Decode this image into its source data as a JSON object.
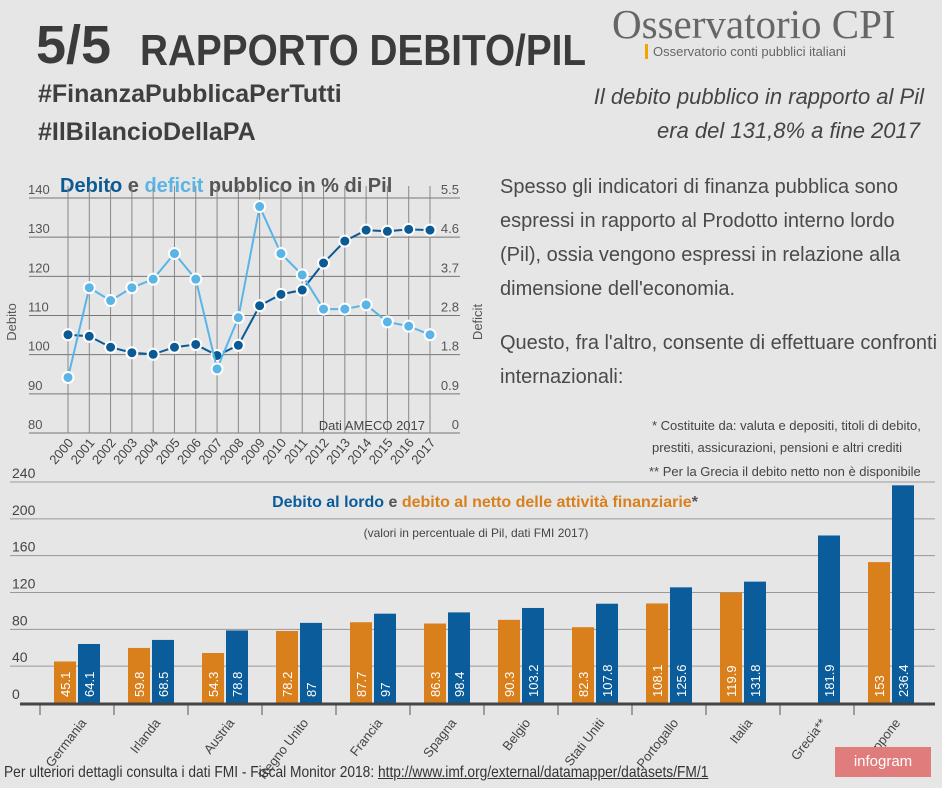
{
  "header": {
    "number": "5/5",
    "title": "RAPPORTO DEBITO/PIL",
    "hashtag1": "#FinanzaPubblicaPerTutti",
    "hashtag2": "#IlBilancioDellaPA"
  },
  "logo": {
    "name": "Osservatorio CPI",
    "tagline": "Osservatorio conti pubblici italiani"
  },
  "headline": {
    "line1": "Il debito pubblico in rapporto al Pil",
    "line2": "era del 131,8% a fine 2017"
  },
  "body": {
    "p1": "Spesso gli indicatori di finanza pubblica sono espressi in rapporto al Prodotto interno lordo (Pil), ossia vengono espressi in relazione alla dimensione dell'economia.",
    "p2": "Questo, fra l'altro, consente di effettuare confronti internazionali:"
  },
  "notes": {
    "n1a": "* Costituite da:  valuta e depositi, titoli di debito,",
    "n1b": "prestiti, assicurazioni, pensioni e altri crediti",
    "n2": "** Per la Grecia il debito netto non è disponibile"
  },
  "footer": {
    "text": "Per ulteriori dettagli consulta i dati FMI - Fiscal Monitor 2018: ",
    "link": "http://www.imf.org/external/datamapper/datasets/FM/1",
    "badge": "infogram"
  },
  "colors": {
    "debito": "#0b5a94",
    "deficit": "#5ab4e5",
    "lordo": "#0a5c9a",
    "netto": "#d9801c"
  },
  "chart_data": [
    {
      "type": "line",
      "title_parts": [
        "Debito",
        " e ",
        "deficit",
        " pubblico in % di Pil"
      ],
      "source": "Dati AMECO 2017",
      "x": [
        "2000",
        "2001",
        "2002",
        "2003",
        "2004",
        "2005",
        "2006",
        "2007",
        "2008",
        "2009",
        "2010",
        "2011",
        "2012",
        "2013",
        "2014",
        "2015",
        "2016",
        "2017"
      ],
      "ylabel": "Debito",
      "y2label": "Deficit",
      "ylim": [
        80,
        140
      ],
      "yticks": [
        "80",
        "90",
        "100",
        "110",
        "120",
        "130",
        "140"
      ],
      "y2lim": [
        0,
        5.5
      ],
      "y2ticks": [
        "0",
        "0.9",
        "1.8",
        "2.8",
        "3.7",
        "4.6",
        "5.5"
      ],
      "grid": true,
      "series": [
        {
          "name": "Debito",
          "axis": "left",
          "values": [
            105.1,
            104.7,
            101.9,
            100.5,
            100.1,
            101.9,
            102.6,
            99.8,
            102.4,
            112.5,
            115.4,
            116.5,
            123.4,
            129.0,
            131.8,
            131.5,
            132.0,
            131.8
          ]
        },
        {
          "name": "deficit",
          "axis": "right",
          "values": [
            1.3,
            3.4,
            3.1,
            3.4,
            3.6,
            4.2,
            3.6,
            1.5,
            2.7,
            5.3,
            4.2,
            3.7,
            2.9,
            2.9,
            3.0,
            2.6,
            2.5,
            2.3
          ]
        }
      ]
    },
    {
      "type": "bar",
      "title_parts": [
        "Debito al lordo",
        " e ",
        "debito al netto delle attività finanziarie",
        "*"
      ],
      "subtitle": "(valori in percentuale di Pil, dati FMI 2017)",
      "categories": [
        "Germania",
        "Irlanda",
        "Austria",
        "Regno Unito",
        "Francia",
        "Spagna",
        "Belgio",
        "Stati Uniti",
        "Portogallo",
        "Italia",
        "Grecia**",
        "Giappone"
      ],
      "ylim": [
        0,
        240
      ],
      "yticks": [
        "0",
        "40",
        "80",
        "120",
        "160",
        "200",
        "240"
      ],
      "grid": true,
      "series": [
        {
          "name": "debito al netto delle attività finanziarie",
          "labels": [
            "45.1",
            "59.8",
            "54.3",
            "78.2",
            "87.7",
            "86.3",
            "90.3",
            "82.3",
            "108.1",
            "119.9",
            null,
            "153"
          ],
          "values": [
            45.1,
            59.8,
            54.3,
            78.2,
            87.7,
            86.3,
            90.3,
            82.3,
            108.1,
            119.9,
            null,
            153
          ]
        },
        {
          "name": "Debito al lordo",
          "labels": [
            "64.1",
            "68.5",
            "78.8",
            "87",
            "97",
            "98.4",
            "103.2",
            "107.8",
            "125.6",
            "131.8",
            "181.9",
            "236.4"
          ],
          "values": [
            64.1,
            68.5,
            78.8,
            87,
            97,
            98.4,
            103.2,
            107.8,
            125.6,
            131.8,
            181.9,
            236.4
          ]
        }
      ]
    }
  ]
}
